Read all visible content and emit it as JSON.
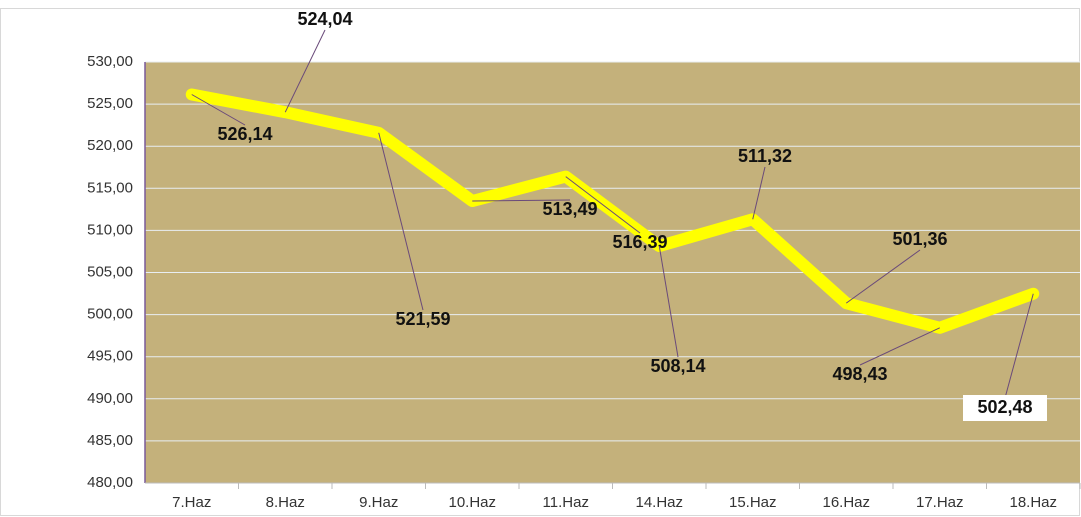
{
  "chart_data": {
    "type": "line",
    "categories": [
      "7.Haz",
      "8.Haz",
      "9.Haz",
      "10.Haz",
      "11.Haz",
      "14.Haz",
      "15.Haz",
      "16.Haz",
      "17.Haz",
      "18.Haz"
    ],
    "series": [
      {
        "name": "",
        "color": "#ffff00",
        "values": [
          526.14,
          524.04,
          521.59,
          513.49,
          516.39,
          508.14,
          511.32,
          501.36,
          498.43,
          502.48
        ],
        "value_labels": [
          "526,14",
          "524,04",
          "521,59",
          "513,49",
          "516,39",
          "508,14",
          "511,32",
          "501,36",
          "498,43",
          "502,48"
        ]
      }
    ],
    "ylim": [
      480,
      530
    ],
    "yticks": [
      {
        "value": 480,
        "label": "480,00"
      },
      {
        "value": 485,
        "label": "485,00"
      },
      {
        "value": 490,
        "label": "490,00"
      },
      {
        "value": 495,
        "label": "495,00"
      },
      {
        "value": 500,
        "label": "500,00"
      },
      {
        "value": 505,
        "label": "505,00"
      },
      {
        "value": 510,
        "label": "510,00"
      },
      {
        "value": 515,
        "label": "515,00"
      },
      {
        "value": 520,
        "label": "520,00"
      },
      {
        "value": 525,
        "label": "525,00"
      },
      {
        "value": 530,
        "label": "530,00"
      }
    ],
    "grid": true
  }
}
